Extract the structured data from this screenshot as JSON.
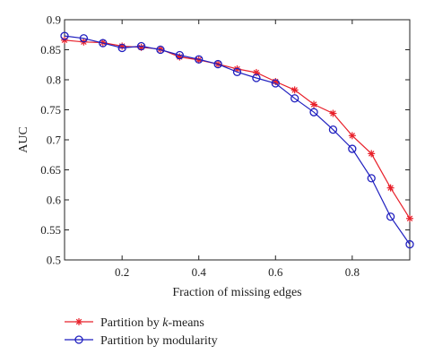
{
  "chart_data": {
    "type": "line",
    "xlabel": "Fraction of missing edges",
    "ylabel": "AUC",
    "xlim": [
      0.05,
      0.95
    ],
    "ylim": [
      0.5,
      0.9
    ],
    "xticks": [
      "0.2",
      "0.4",
      "0.6",
      "0.8"
    ],
    "yticks": [
      "0.5",
      "0.55",
      "0.6",
      "0.65",
      "0.7",
      "0.75",
      "0.8",
      "0.85",
      "0.9"
    ],
    "x": [
      0.05,
      0.1,
      0.15,
      0.2,
      0.25,
      0.3,
      0.35,
      0.4,
      0.45,
      0.5,
      0.55,
      0.6,
      0.65,
      0.7,
      0.75,
      0.8,
      0.85,
      0.9,
      0.95
    ],
    "series": [
      {
        "name_prefix": "Partition by ",
        "name_italic": "k",
        "name_suffix": "-means",
        "color": "#e8202a",
        "marker": "asterisk",
        "values": [
          0.866,
          0.863,
          0.862,
          0.856,
          0.854,
          0.851,
          0.838,
          0.833,
          0.826,
          0.818,
          0.812,
          0.797,
          0.783,
          0.759,
          0.744,
          0.707,
          0.677,
          0.62,
          0.569
        ]
      },
      {
        "name_prefix": "Partition by modularity",
        "name_italic": "",
        "name_suffix": "",
        "color": "#1f1fbf",
        "marker": "circle",
        "values": [
          0.873,
          0.869,
          0.861,
          0.853,
          0.856,
          0.85,
          0.841,
          0.834,
          0.826,
          0.813,
          0.803,
          0.794,
          0.769,
          0.746,
          0.717,
          0.685,
          0.636,
          0.572,
          0.526
        ]
      }
    ],
    "grid": false,
    "legend_position": "bottom-left-below-plot"
  }
}
